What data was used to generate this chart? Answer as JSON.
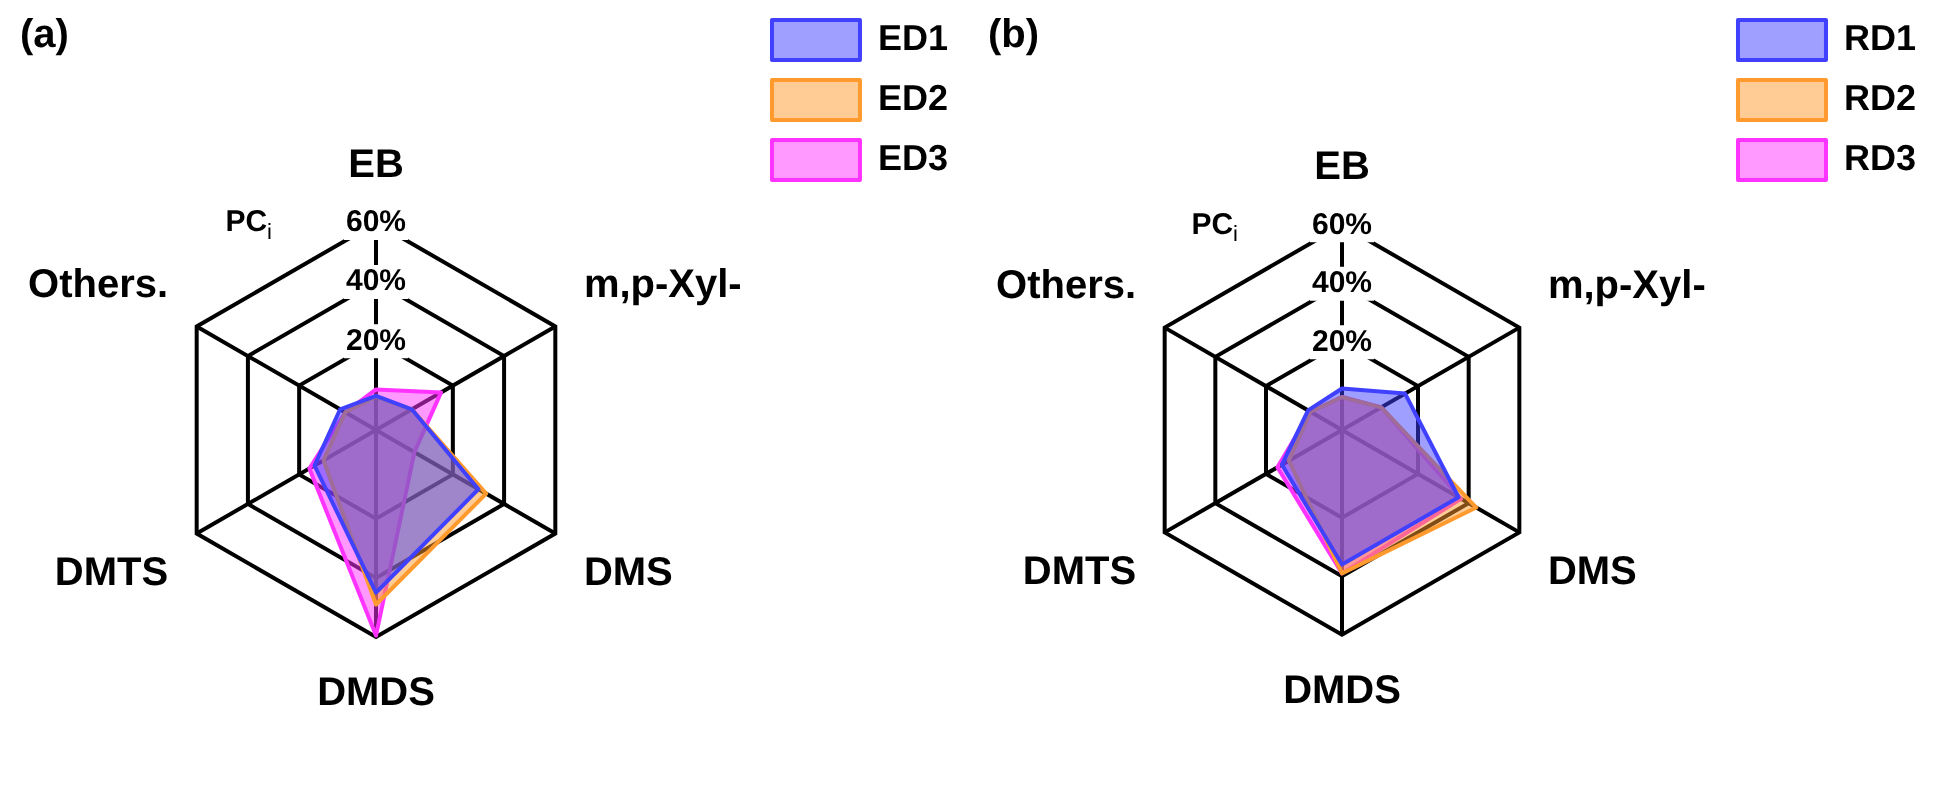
{
  "chart_data": [
    {
      "type": "radar",
      "title": "(a)",
      "ylabel": "PC$_{i}$",
      "categories": [
        "EB",
        "m,p-Xyl-",
        "DMS",
        "DMDS",
        "DMTS",
        "Others."
      ],
      "ylim": [
        -10,
        60
      ],
      "yticks": [
        {
          "value": 20,
          "label": "20%"
        },
        {
          "value": 40,
          "label": "40%"
        },
        {
          "value": 60,
          "label": "60%"
        }
      ],
      "legend": "top right",
      "marker": "none",
      "series": [
        {
          "name": "ED1",
          "color": "#4040ff",
          "values": [
            1.5,
            4,
            30,
            45,
            14,
            4
          ]
        },
        {
          "name": "ED2",
          "color": "#ff9a2e",
          "values": [
            1.3,
            4,
            33,
            49,
            10.5,
            2
          ]
        },
        {
          "name": "ED3",
          "color": "#ff33ff",
          "values": [
            3.7,
            15.4,
            5,
            59.5,
            16,
            2
          ]
        }
      ]
    },
    {
      "type": "radar",
      "title": "(b)",
      "ylabel": "PC$_{i}$",
      "categories": [
        "EB",
        "m,p-Xyl-",
        "DMS",
        "DMDS",
        "DMTS",
        "Others."
      ],
      "ylim": [
        -10,
        60
      ],
      "yticks": [
        {
          "value": 20,
          "label": "20%"
        },
        {
          "value": 40,
          "label": "40%"
        },
        {
          "value": 60,
          "label": "60%"
        }
      ],
      "legend": "top right",
      "marker": "none",
      "series": [
        {
          "name": "RD1",
          "color": "#4040ff",
          "values": [
            4.2,
            14.9,
            36,
            36,
            13.7,
            3.4
          ]
        },
        {
          "name": "RD2",
          "color": "#ff9a2e",
          "values": [
            1.3,
            5.5,
            43,
            39,
            11,
            2.5
          ]
        },
        {
          "name": "RD3",
          "color": "#ff33ff",
          "values": [
            1.3,
            5.5,
            37,
            39,
            15.5,
            2.5
          ]
        }
      ]
    }
  ]
}
